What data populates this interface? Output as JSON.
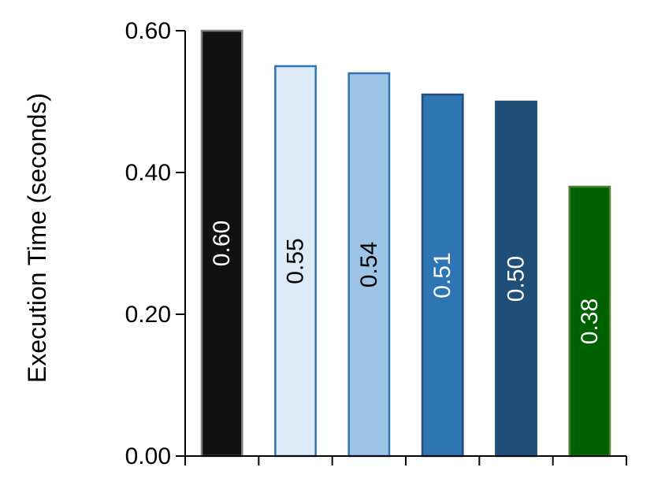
{
  "chart_data": {
    "type": "bar",
    "title": "",
    "xlabel": "",
    "ylabel": "Execution Time (seconds)",
    "ylim": [
      0,
      0.6
    ],
    "yticks": [
      0.0,
      0.2,
      0.4,
      0.6
    ],
    "ytick_labels": [
      "0.00",
      "0.20",
      "0.40",
      "0.60"
    ],
    "grid": false,
    "legend": "none",
    "categories": [
      "",
      "",
      "",
      "",
      "",
      ""
    ],
    "values": [
      0.6,
      0.55,
      0.54,
      0.51,
      0.5,
      0.38
    ],
    "data_labels": [
      "0.60",
      "0.55",
      "0.54",
      "0.51",
      "0.50",
      "0.38"
    ],
    "bar_fill_colors": [
      "#111111",
      "#ddeaf7",
      "#9dc3e6",
      "#2e75b6",
      "#1f4e79",
      "#006100"
    ],
    "bar_stroke_colors": [
      "#7f7f7f",
      "#2e75b6",
      "#2e75b6",
      "#1f4e79",
      "#1f4e79",
      "#548235"
    ],
    "bar_label_colors": [
      "#ffffff",
      "#000000",
      "#000000",
      "#ffffff",
      "#ffffff",
      "#ffffff"
    ]
  }
}
